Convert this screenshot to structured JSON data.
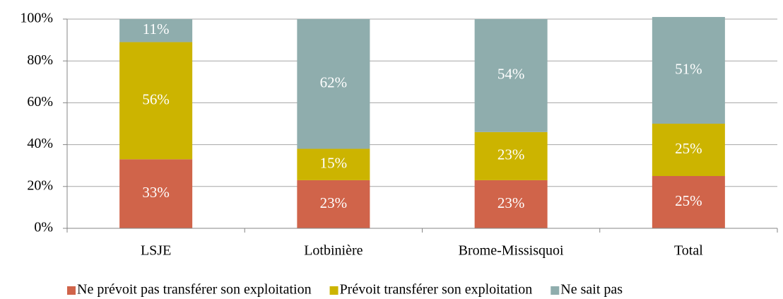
{
  "chart_data": {
    "type": "stacked_bar",
    "categories": [
      "LSJE",
      "Lotbinière",
      "Brome-Missisquoi",
      "Total"
    ],
    "series": [
      {
        "name": "Ne prévoit pas transférer son exploitation",
        "color": "#d0644a",
        "values": [
          33,
          23,
          23,
          25
        ],
        "value_labels": [
          "33%",
          "23%",
          "23%",
          "25%"
        ]
      },
      {
        "name": "Prévoit transférer son exploitation",
        "color": "#ccb400",
        "values": [
          56,
          15,
          23,
          25
        ],
        "value_labels": [
          "56%",
          "15%",
          "23%",
          "25%"
        ]
      },
      {
        "name": "Ne sait pas",
        "color": "#8fadad",
        "values": [
          11,
          62,
          54,
          51
        ],
        "value_labels": [
          "11%",
          "62%",
          "54%",
          "51%"
        ]
      }
    ],
    "ylim": [
      0,
      100
    ],
    "yticks": [
      {
        "value": 0,
        "label": "0%"
      },
      {
        "value": 20,
        "label": "20%"
      },
      {
        "value": 40,
        "label": "40%"
      },
      {
        "value": 60,
        "label": "60%"
      },
      {
        "value": 80,
        "label": "80%"
      },
      {
        "value": 100,
        "label": "100%"
      }
    ],
    "grid": true,
    "legend": "bottom"
  }
}
